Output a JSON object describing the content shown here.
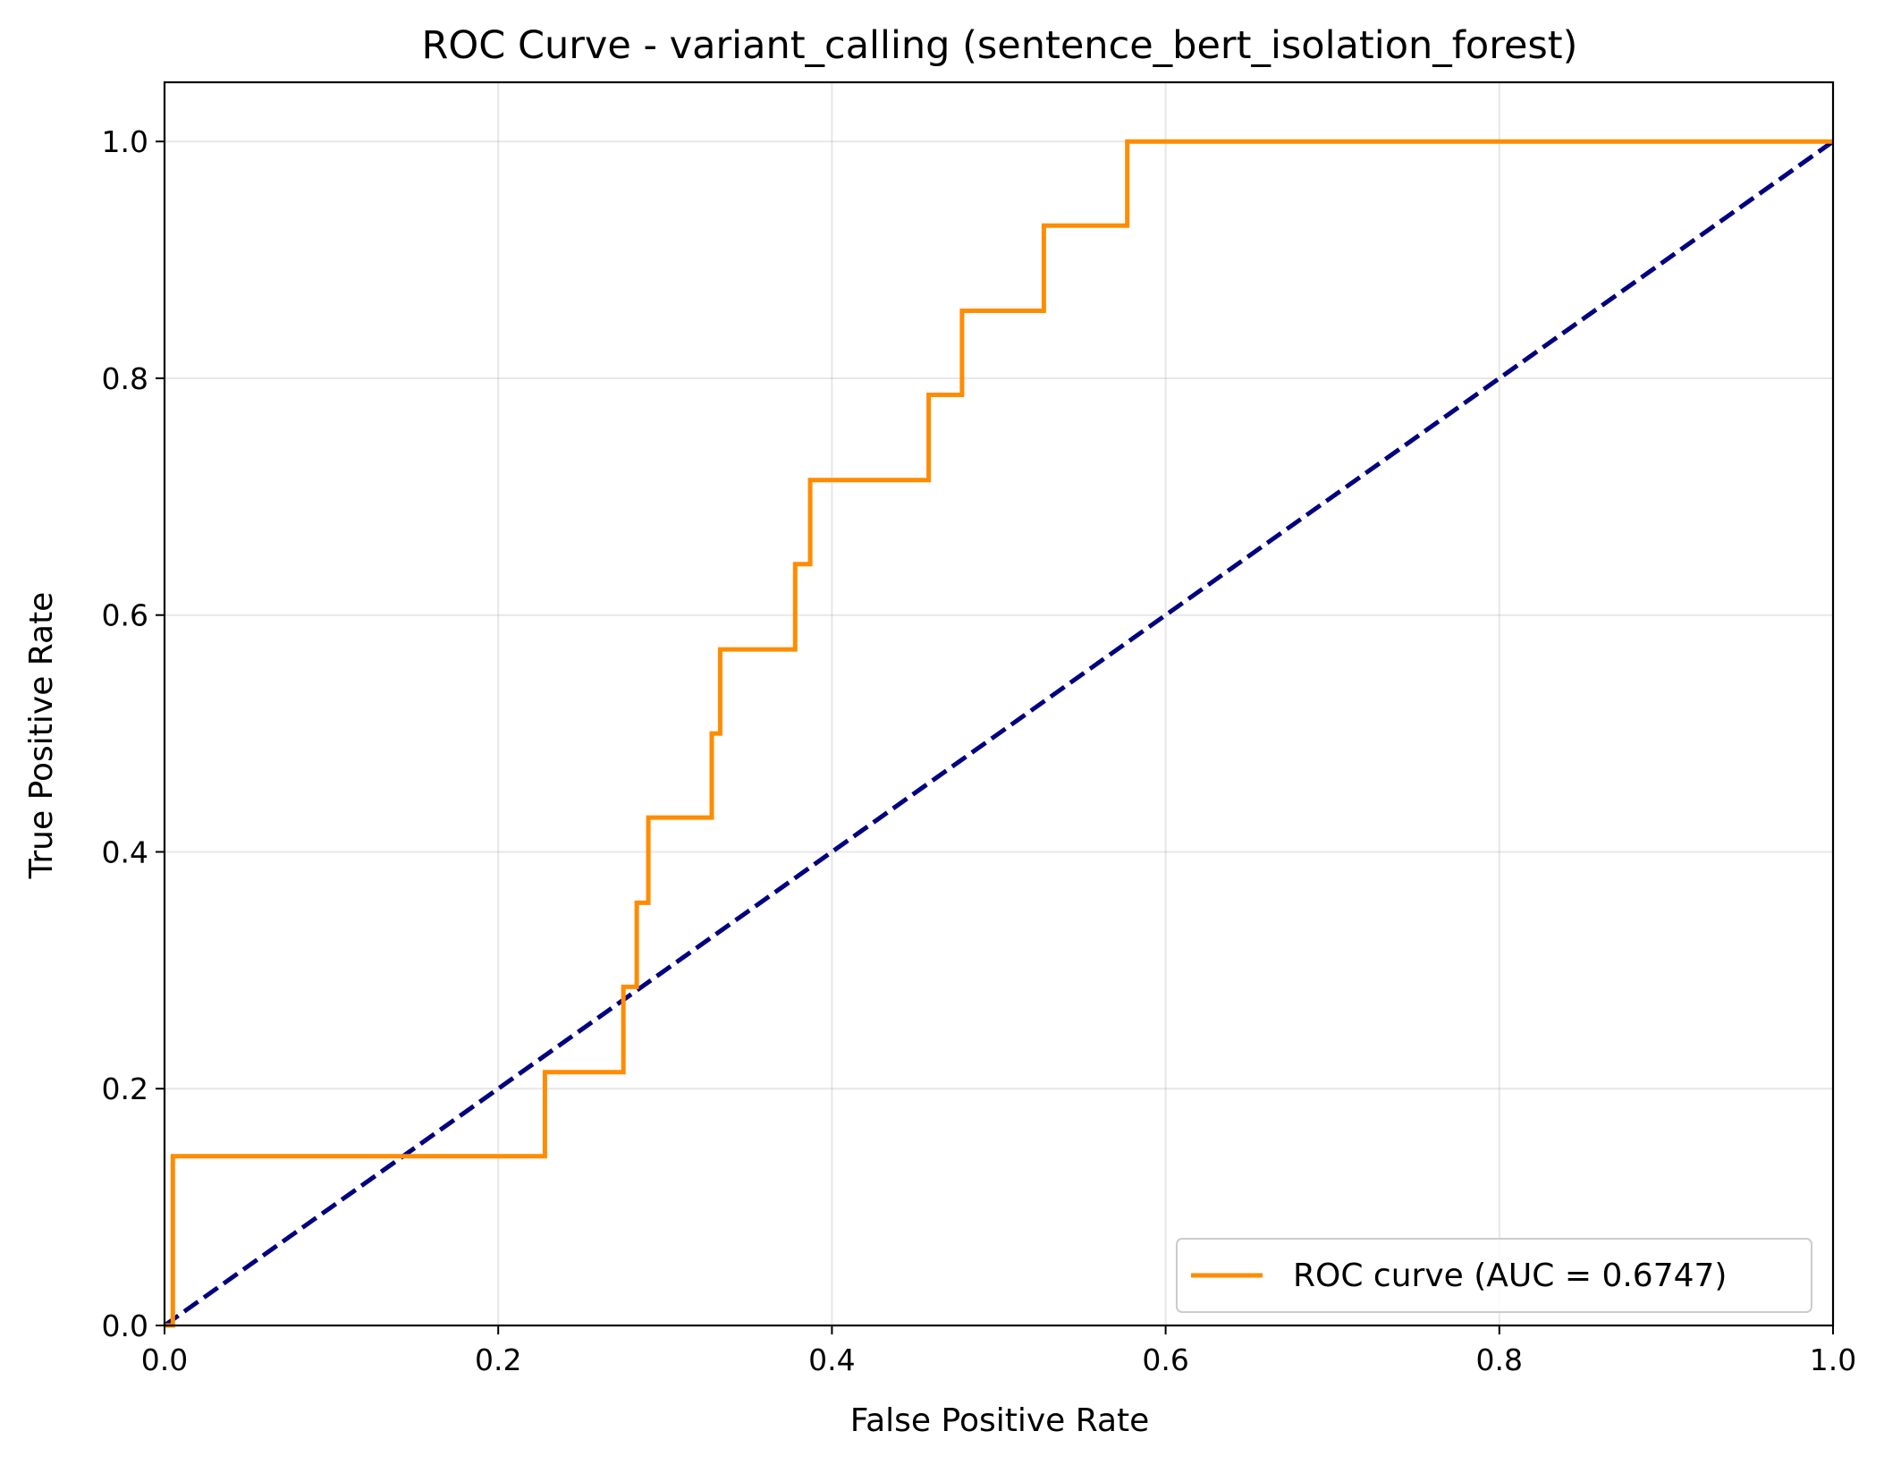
{
  "chart_data": {
    "type": "line",
    "title": "ROC Curve - variant_calling (sentence_bert_isolation_forest)",
    "xlabel": "False Positive Rate",
    "ylabel": "True Positive Rate",
    "xlim": [
      0.0,
      1.0
    ],
    "ylim": [
      0.0,
      1.05
    ],
    "x_ticks": [
      "0.0",
      "0.2",
      "0.4",
      "0.6",
      "0.8",
      "1.0"
    ],
    "y_ticks": [
      "0.0",
      "0.2",
      "0.4",
      "0.6",
      "0.8",
      "1.0"
    ],
    "grid": true,
    "legend_position": "lower-right",
    "series": [
      {
        "name": "ROC curve (AUC = 0.6747)",
        "color": "#ff8c00",
        "style": "solid",
        "x": [
          0.0,
          0.005,
          0.005,
          0.228,
          0.228,
          0.275,
          0.275,
          0.283,
          0.283,
          0.29,
          0.29,
          0.328,
          0.328,
          0.333,
          0.333,
          0.378,
          0.378,
          0.387,
          0.387,
          0.458,
          0.458,
          0.478,
          0.478,
          0.527,
          0.527,
          0.577,
          0.577,
          1.0
        ],
        "y": [
          0.0,
          0.0,
          0.143,
          0.143,
          0.214,
          0.214,
          0.286,
          0.286,
          0.357,
          0.357,
          0.429,
          0.429,
          0.5,
          0.5,
          0.571,
          0.571,
          0.643,
          0.643,
          0.714,
          0.714,
          0.786,
          0.786,
          0.857,
          0.857,
          0.929,
          0.929,
          1.0,
          1.0
        ]
      },
      {
        "color": "#000080",
        "style": "dashed",
        "x": [
          0.0,
          1.0
        ],
        "y": [
          0.0,
          1.0
        ]
      }
    ]
  }
}
